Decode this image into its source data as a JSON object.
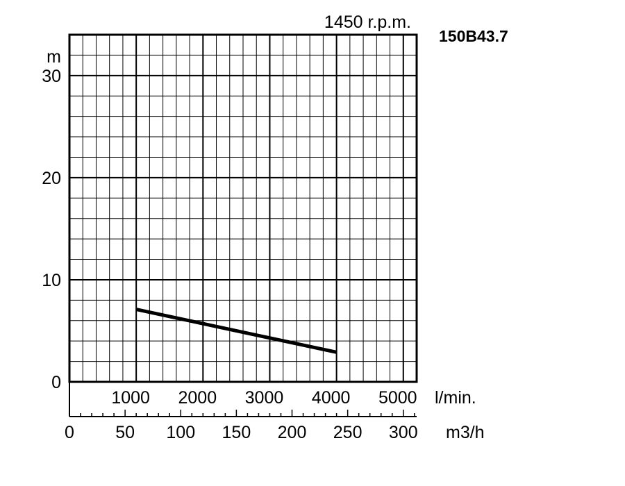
{
  "chart_data": {
    "type": "line",
    "speed_label": "1450 r.p.m.",
    "model": "150B43.7",
    "ylabel": "m",
    "ylim": [
      0,
      34
    ],
    "yticks": [
      0,
      10,
      20,
      30
    ],
    "x_lpm": {
      "unit": "l/min.",
      "range": [
        0,
        5200
      ],
      "ticks": [
        1000,
        2000,
        3000,
        4000,
        5000
      ]
    },
    "x_m3h": {
      "unit": "m3/h",
      "range": [
        0,
        312
      ],
      "ticks": [
        0,
        50,
        100,
        150,
        200,
        250,
        300
      ]
    },
    "grid": true,
    "series": [
      {
        "x": [
          1000,
          4000
        ],
        "y": [
          7.1,
          2.9
        ]
      }
    ]
  }
}
